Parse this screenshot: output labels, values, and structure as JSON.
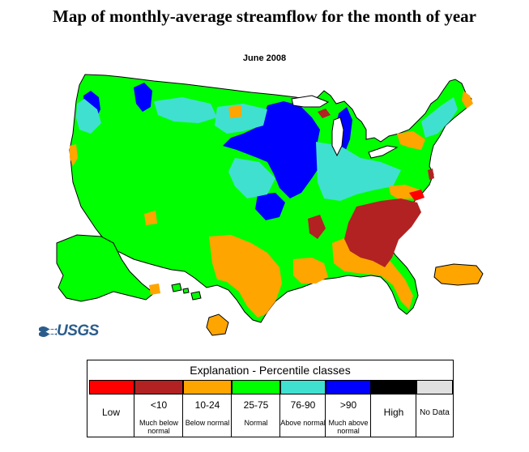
{
  "title": "Map of monthly-average streamflow for the month of year",
  "subtitle": "June  2008",
  "logo_text": "USGS",
  "legend": {
    "title": "Explanation - Percentile classes",
    "classes": [
      {
        "range": "Low",
        "description": "",
        "color": "#ff0000"
      },
      {
        "range": "<10",
        "description": "Much below normal",
        "color": "#b22222"
      },
      {
        "range": "10-24",
        "description": "Below normal",
        "color": "#ffa500"
      },
      {
        "range": "25-75",
        "description": "Normal",
        "color": "#00ff00"
      },
      {
        "range": "76-90",
        "description": "Above normal",
        "color": "#40e0d0"
      },
      {
        "range": ">90",
        "description": "Much above normal",
        "color": "#0000ff"
      },
      {
        "range": "High",
        "description": "",
        "color": "#000000"
      },
      {
        "range": "No Data",
        "description": "",
        "color": "#e0e0e0"
      }
    ]
  },
  "map": {
    "region_colors": {
      "normal": "#00ff00",
      "above_normal": "#40e0d0",
      "much_above_normal": "#0000ff",
      "below_normal": "#ffa500",
      "much_below_normal": "#b22222",
      "low": "#ff0000",
      "outline": "#000000"
    }
  }
}
